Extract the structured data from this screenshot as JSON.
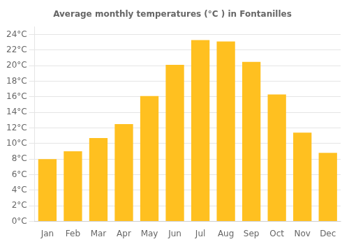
{
  "chart_data": {
    "type": "bar",
    "title": "Average monthly temperatures (°C ) in Fontanilles",
    "categories": [
      "Jan",
      "Feb",
      "Mar",
      "Apr",
      "May",
      "Jun",
      "Jul",
      "Aug",
      "Sep",
      "Oct",
      "Nov",
      "Dec"
    ],
    "values": [
      8.0,
      9.0,
      10.7,
      12.5,
      16.1,
      20.1,
      23.3,
      23.1,
      20.5,
      16.3,
      11.4,
      8.8
    ],
    "color": "#FFC020",
    "ylim": [
      0,
      25
    ],
    "yticks": [
      {
        "value": 0,
        "label": "0°C"
      },
      {
        "value": 2,
        "label": "2°C"
      },
      {
        "value": 4,
        "label": "4°C"
      },
      {
        "value": 6,
        "label": "6°C"
      },
      {
        "value": 8,
        "label": "8°C"
      },
      {
        "value": 10,
        "label": "10°C"
      },
      {
        "value": 12,
        "label": "12°C"
      },
      {
        "value": 14,
        "label": "14°C"
      },
      {
        "value": 16,
        "label": "16°C"
      },
      {
        "value": 18,
        "label": "18°C"
      },
      {
        "value": 20,
        "label": "20°C"
      },
      {
        "value": 22,
        "label": "22°C"
      },
      {
        "value": 24,
        "label": "24°C"
      }
    ],
    "grid": true
  }
}
